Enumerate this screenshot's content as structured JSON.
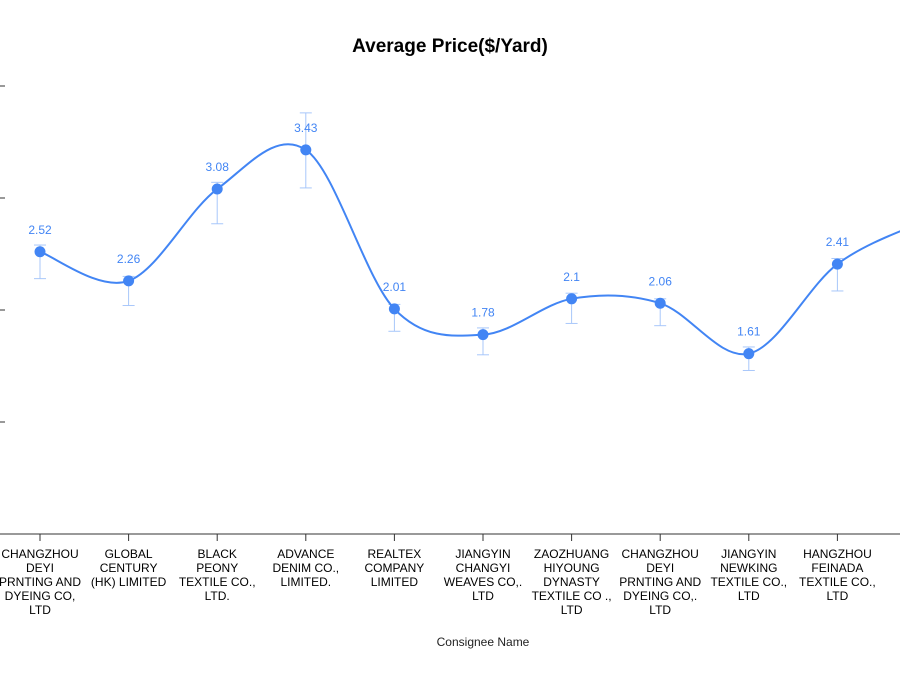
{
  "chart_data": {
    "type": "line",
    "title": "Average Price($/Yard)",
    "xlabel": "Consignee Name",
    "ylabel": "",
    "ylim": [
      0,
      4
    ],
    "grid": false,
    "legend": "none",
    "categories": [
      "CHANGZHOU DEYI PRNTING AND DYEING CO, LTD",
      "GLOBAL CENTURY (HK) LIMITED",
      "BLACK PEONY TEXTILE CO., LTD.",
      "ADVANCE DENIM CO., LIMITED.",
      "REALTEX COMPANY LIMITED",
      "JIANGYIN CHANGYI WEAVES CO,. LTD",
      "ZAOZHUANG HIYOUNG DYNASTY TEXTILE CO ., LTD",
      "CHANGZHOU DEYI PRNTING AND DYEING CO,. LTD",
      "JIANGYIN NEWKING TEXTILE CO., LTD",
      "HANGZHOU FEINADA TEXTILE CO., LTD"
    ],
    "category_lines": [
      [
        "CHANGZHOU",
        "DEYI",
        "PRNTING AND",
        "DYEING CO,",
        "LTD"
      ],
      [
        "GLOBAL",
        "CENTURY",
        "(HK) LIMITED"
      ],
      [
        "BLACK",
        "PEONY",
        "TEXTILE CO.,",
        "LTD."
      ],
      [
        "ADVANCE",
        "DENIM CO.,",
        "LIMITED."
      ],
      [
        "REALTEX",
        "COMPANY",
        "LIMITED"
      ],
      [
        "JIANGYIN",
        "CHANGYI",
        "WEAVES CO,.",
        "LTD"
      ],
      [
        "ZAOZHUANG",
        "HIYOUNG",
        "DYNASTY",
        "TEXTILE CO .,",
        "LTD"
      ],
      [
        "CHANGZHOU",
        "DEYI",
        "PRNTING AND",
        "DYEING CO,.",
        "LTD"
      ],
      [
        "JIANGYIN",
        "NEWKING",
        "TEXTILE CO.,",
        "LTD"
      ],
      [
        "HANGZHOU",
        "FEINADA",
        "TEXTILE CO.,",
        "LTD"
      ]
    ],
    "values": [
      2.52,
      2.26,
      3.08,
      3.43,
      2.01,
      1.78,
      2.1,
      2.06,
      1.61,
      2.41
    ],
    "data_labels": [
      "2.52",
      "2.26",
      "3.08",
      "3.43",
      "2.01",
      "1.78",
      "2.1",
      "2.06",
      "1.61",
      "2.41"
    ],
    "error_low": [
      2.28,
      2.04,
      2.77,
      3.09,
      1.81,
      1.6,
      1.88,
      1.86,
      1.46,
      2.17
    ],
    "error_high": [
      2.58,
      2.3,
      3.14,
      3.76,
      2.05,
      1.84,
      2.15,
      2.1,
      1.67,
      2.46
    ],
    "continuation_value": 2.8,
    "colors": {
      "line": "#4285f4",
      "point": "#4285f4",
      "error_bar": "#a8c7fa",
      "data_label": "#4285f4",
      "axis": "#333333"
    }
  }
}
